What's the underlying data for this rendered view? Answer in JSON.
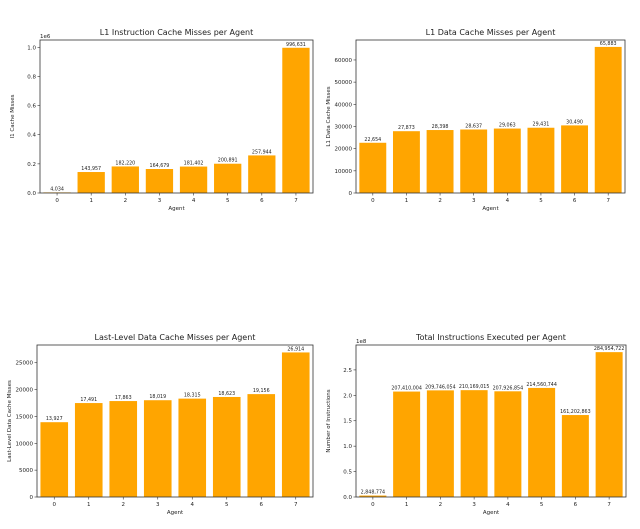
{
  "chart_data": [
    {
      "type": "bar",
      "title": "L1 Instruction Cache Misses per Agent",
      "xlabel": "Agent",
      "ylabel": "I1 Cache Misses",
      "categories": [
        "0",
        "1",
        "2",
        "3",
        "4",
        "5",
        "6",
        "7"
      ],
      "values": [
        4034,
        143957,
        182220,
        164679,
        181402,
        200891,
        257944,
        996631
      ],
      "data_labels": [
        "4,034",
        "143,957",
        "182,220",
        "164,679",
        "181,402",
        "200,891",
        "257,944",
        "996,631"
      ],
      "ylim": [
        0,
        1050000
      ],
      "yticks": [
        0,
        200000,
        400000,
        600000,
        800000,
        1000000
      ],
      "ytick_labels": [
        "0.0",
        "0.2",
        "0.4",
        "0.6",
        "0.8",
        "1.0"
      ],
      "offset_label": "1e6",
      "bar_color": "#FFA500"
    },
    {
      "type": "bar",
      "title": "L1 Data Cache Misses per Agent",
      "xlabel": "Agent",
      "ylabel": "L1 Data Cache Misses",
      "categories": [
        "0",
        "1",
        "2",
        "3",
        "4",
        "5",
        "6",
        "7"
      ],
      "values": [
        22654,
        27873,
        28398,
        28637,
        29063,
        29431,
        30490,
        65883
      ],
      "data_labels": [
        "22,654",
        "27,873",
        "28,398",
        "28,637",
        "29,063",
        "29,431",
        "30,490",
        "65,883"
      ],
      "ylim": [
        0,
        69000
      ],
      "yticks": [
        0,
        10000,
        20000,
        30000,
        40000,
        50000,
        60000
      ],
      "ytick_labels": [
        "0",
        "10000",
        "20000",
        "30000",
        "40000",
        "50000",
        "60000"
      ],
      "bar_color": "#FFA500"
    },
    {
      "type": "bar",
      "title": "Last-Level Data Cache Misses per Agent",
      "xlabel": "Agent",
      "ylabel": "Last-Level Data Cache Misses",
      "categories": [
        "0",
        "1",
        "2",
        "3",
        "4",
        "5",
        "6",
        "7"
      ],
      "values": [
        13927,
        17491,
        17863,
        18019,
        18315,
        18623,
        19156,
        26914
      ],
      "data_labels": [
        "13,927",
        "17,491",
        "17,863",
        "18,019",
        "18,315",
        "18,623",
        "19,156",
        "26,914"
      ],
      "ylim": [
        0,
        28300
      ],
      "yticks": [
        0,
        5000,
        10000,
        15000,
        20000,
        25000
      ],
      "ytick_labels": [
        "0",
        "5000",
        "10000",
        "15000",
        "20000",
        "25000"
      ],
      "bar_color": "#FFA500"
    },
    {
      "type": "bar",
      "title": "Total Instructions Executed per Agent",
      "xlabel": "Agent",
      "ylabel": "Number of Instructions",
      "categories": [
        "0",
        "1",
        "2",
        "3",
        "4",
        "5",
        "6",
        "7"
      ],
      "values": [
        2848774,
        207410004,
        209746054,
        210169015,
        207926854,
        214560744,
        161202863,
        284954722
      ],
      "data_labels": [
        "2,848,774",
        "207,410,004",
        "209,746,054",
        "210,169,015",
        "207,926,854",
        "214,560,744",
        "161,202,863",
        "284,954,722"
      ],
      "ylim": [
        0,
        299000000
      ],
      "yticks": [
        0,
        50000000,
        100000000,
        150000000,
        200000000,
        250000000
      ],
      "ytick_labels": [
        "0.0",
        "0.5",
        "1.0",
        "1.5",
        "2.0",
        "2.5"
      ],
      "offset_label": "1e8",
      "bar_color": "#FFA500"
    }
  ]
}
